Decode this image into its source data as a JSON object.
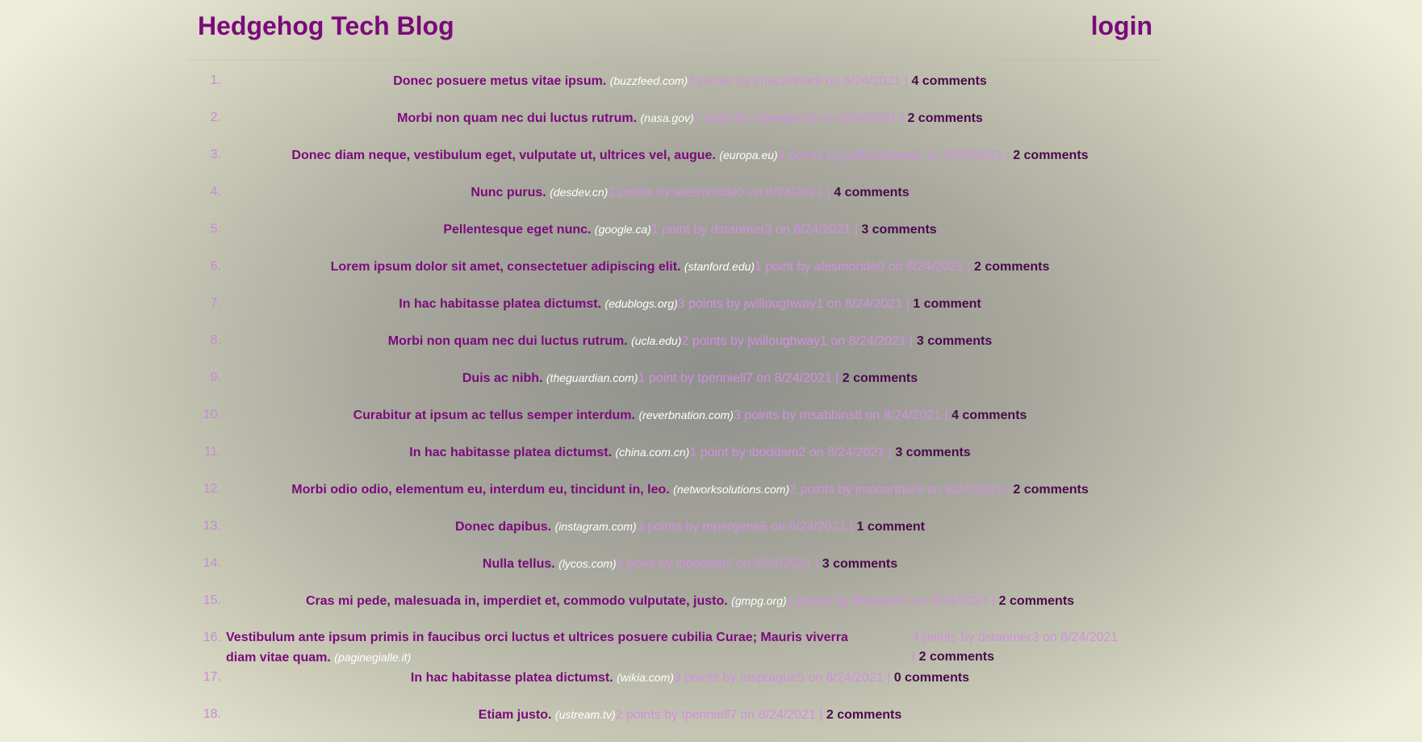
{
  "header": {
    "brand": "Hedgehog Tech Blog",
    "login": "login"
  },
  "posts": [
    {
      "rank": "1.",
      "title": "Donec posuere metus vitae ipsum.",
      "site": "(buzzfeed.com)",
      "meta": "3 points by jmacarthur9 on 8/24/2021 |",
      "comments": "4 comments"
    },
    {
      "rank": "2.",
      "title": "Morbi non quam nec dui luctus rutrum.",
      "site": "(nasa.gov)",
      "meta": "1 point by mpergens6 on 8/24/2021 |",
      "comments": "2 comments"
    },
    {
      "rank": "3.",
      "title": "Donec diam neque, vestibulum eget, vulputate ut, ultrices vel, augue.",
      "site": "(europa.eu)",
      "meta": "3 points by jwilloughway1 on 8/24/2021 |",
      "comments": "2 comments"
    },
    {
      "rank": "4.",
      "title": "Nunc purus.",
      "site": "(desdev.cn)",
      "meta": "2 points by alesmonde0 on 8/24/2021 |",
      "comments": "4 comments"
    },
    {
      "rank": "5.",
      "title": "Pellentesque eget nunc.",
      "site": "(google.ca)",
      "meta": "1 point by dstanmer3 on 8/24/2021 |",
      "comments": "3 comments"
    },
    {
      "rank": "6.",
      "title": "Lorem ipsum dolor sit amet, consectetuer adipiscing elit.",
      "site": "(stanford.edu)",
      "meta": "1 point by alesmonde0 on 8/24/2021 |",
      "comments": "2 comments"
    },
    {
      "rank": "7.",
      "title": "In hac habitasse platea dictumst.",
      "site": "(edublogs.org)",
      "meta": "3 points by jwilloughway1 on 8/24/2021 |",
      "comments": "1 comment"
    },
    {
      "rank": "8.",
      "title": "Morbi non quam nec dui luctus rutrum.",
      "site": "(ucla.edu)",
      "meta": "2 points by jwilloughway1 on 8/24/2021 |",
      "comments": "3 comments"
    },
    {
      "rank": "9.",
      "title": "Duis ac nibh.",
      "site": "(theguardian.com)",
      "meta": "1 point by tpenniell7 on 8/24/2021 |",
      "comments": "2 comments"
    },
    {
      "rank": "10.",
      "title": "Curabitur at ipsum ac tellus semper interdum.",
      "site": "(reverbnation.com)",
      "meta": "3 points by msabbins8 on 8/24/2021 |",
      "comments": "4 comments"
    },
    {
      "rank": "11.",
      "title": "In hac habitasse platea dictumst.",
      "site": "(china.com.cn)",
      "meta": "1 point by iboddam2 on 8/24/2021 |",
      "comments": "3 comments"
    },
    {
      "rank": "12.",
      "title": "Morbi odio odio, elementum eu, interdum eu, tincidunt in, leo.",
      "site": "(networksolutions.com)",
      "meta": "2 points by jmacarthur9 on 8/24/2021 |",
      "comments": "2 comments"
    },
    {
      "rank": "13.",
      "title": "Donec dapibus.",
      "site": "(instagram.com)",
      "meta": "3 points by mpergens6 on 8/24/2021 |",
      "comments": "1 comment"
    },
    {
      "rank": "14.",
      "title": "Nulla tellus.",
      "site": "(lycos.com)",
      "meta": "1 point by iboddam2 on 8/24/2021 |",
      "comments": "3 comments"
    },
    {
      "rank": "15.",
      "title": "Cras mi pede, malesuada in, imperdiet et, commodo vulputate, justo.",
      "site": "(gmpg.org)",
      "meta": "1 points by iboddam2 on 8/24/2021 |",
      "comments": "2 comments"
    },
    {
      "rank": "16.",
      "title": "Vestibulum ante ipsum primis in faucibus orci luctus et ultrices posuere cubilia Curae; Mauris viverra diam vitae quam.",
      "site": "(paginegialle.it)",
      "meta": "4 points by dstanmer3 on 8/24/2021 |",
      "comments": "2 comments",
      "wrap": true
    },
    {
      "rank": "17.",
      "title": "In hac habitasse platea dictumst.",
      "site": "(wikia.com)",
      "meta": "3 points by msprague5 on 8/24/2021 |",
      "comments": "0 comments"
    },
    {
      "rank": "18.",
      "title": "Etiam justo.",
      "site": "(ustream.tv)",
      "meta": "2 points by tpenniell7 on 8/24/2021 |",
      "comments": "2 comments"
    }
  ]
}
